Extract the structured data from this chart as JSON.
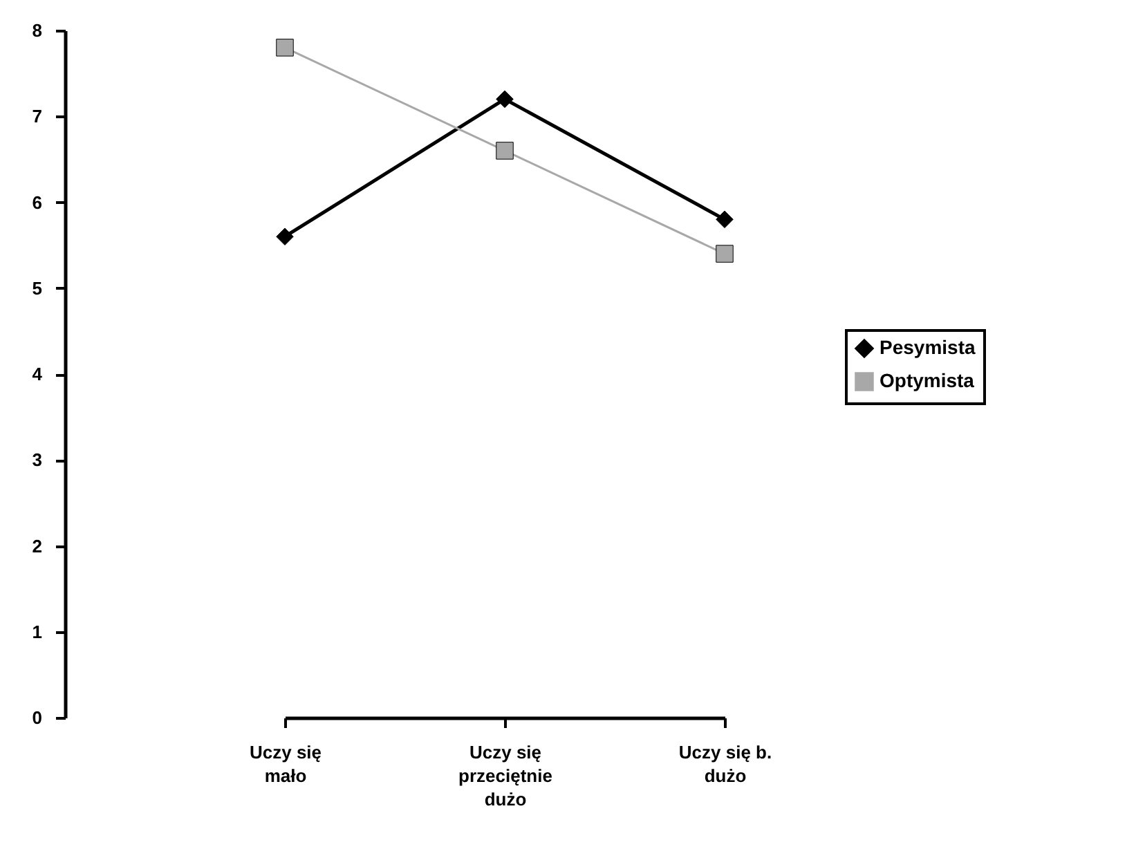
{
  "chart_data": {
    "type": "line",
    "categories": [
      "Uczy się mało",
      "Uczy się przeciętnie dużo",
      "Uczy się b. dużo"
    ],
    "series": [
      {
        "name": "Pesymista",
        "color": "#000000",
        "values": [
          5.6,
          7.2,
          5.8
        ],
        "marker": "diamond"
      },
      {
        "name": "Optymista",
        "color": "#a8a8a8",
        "values": [
          7.8,
          6.6,
          5.4
        ],
        "marker": "square"
      }
    ],
    "ylim": [
      0,
      8
    ],
    "yticks": [
      0,
      1,
      2,
      3,
      4,
      5,
      6,
      7,
      8
    ],
    "grid": false,
    "legend": "right",
    "line_style": "solid"
  }
}
